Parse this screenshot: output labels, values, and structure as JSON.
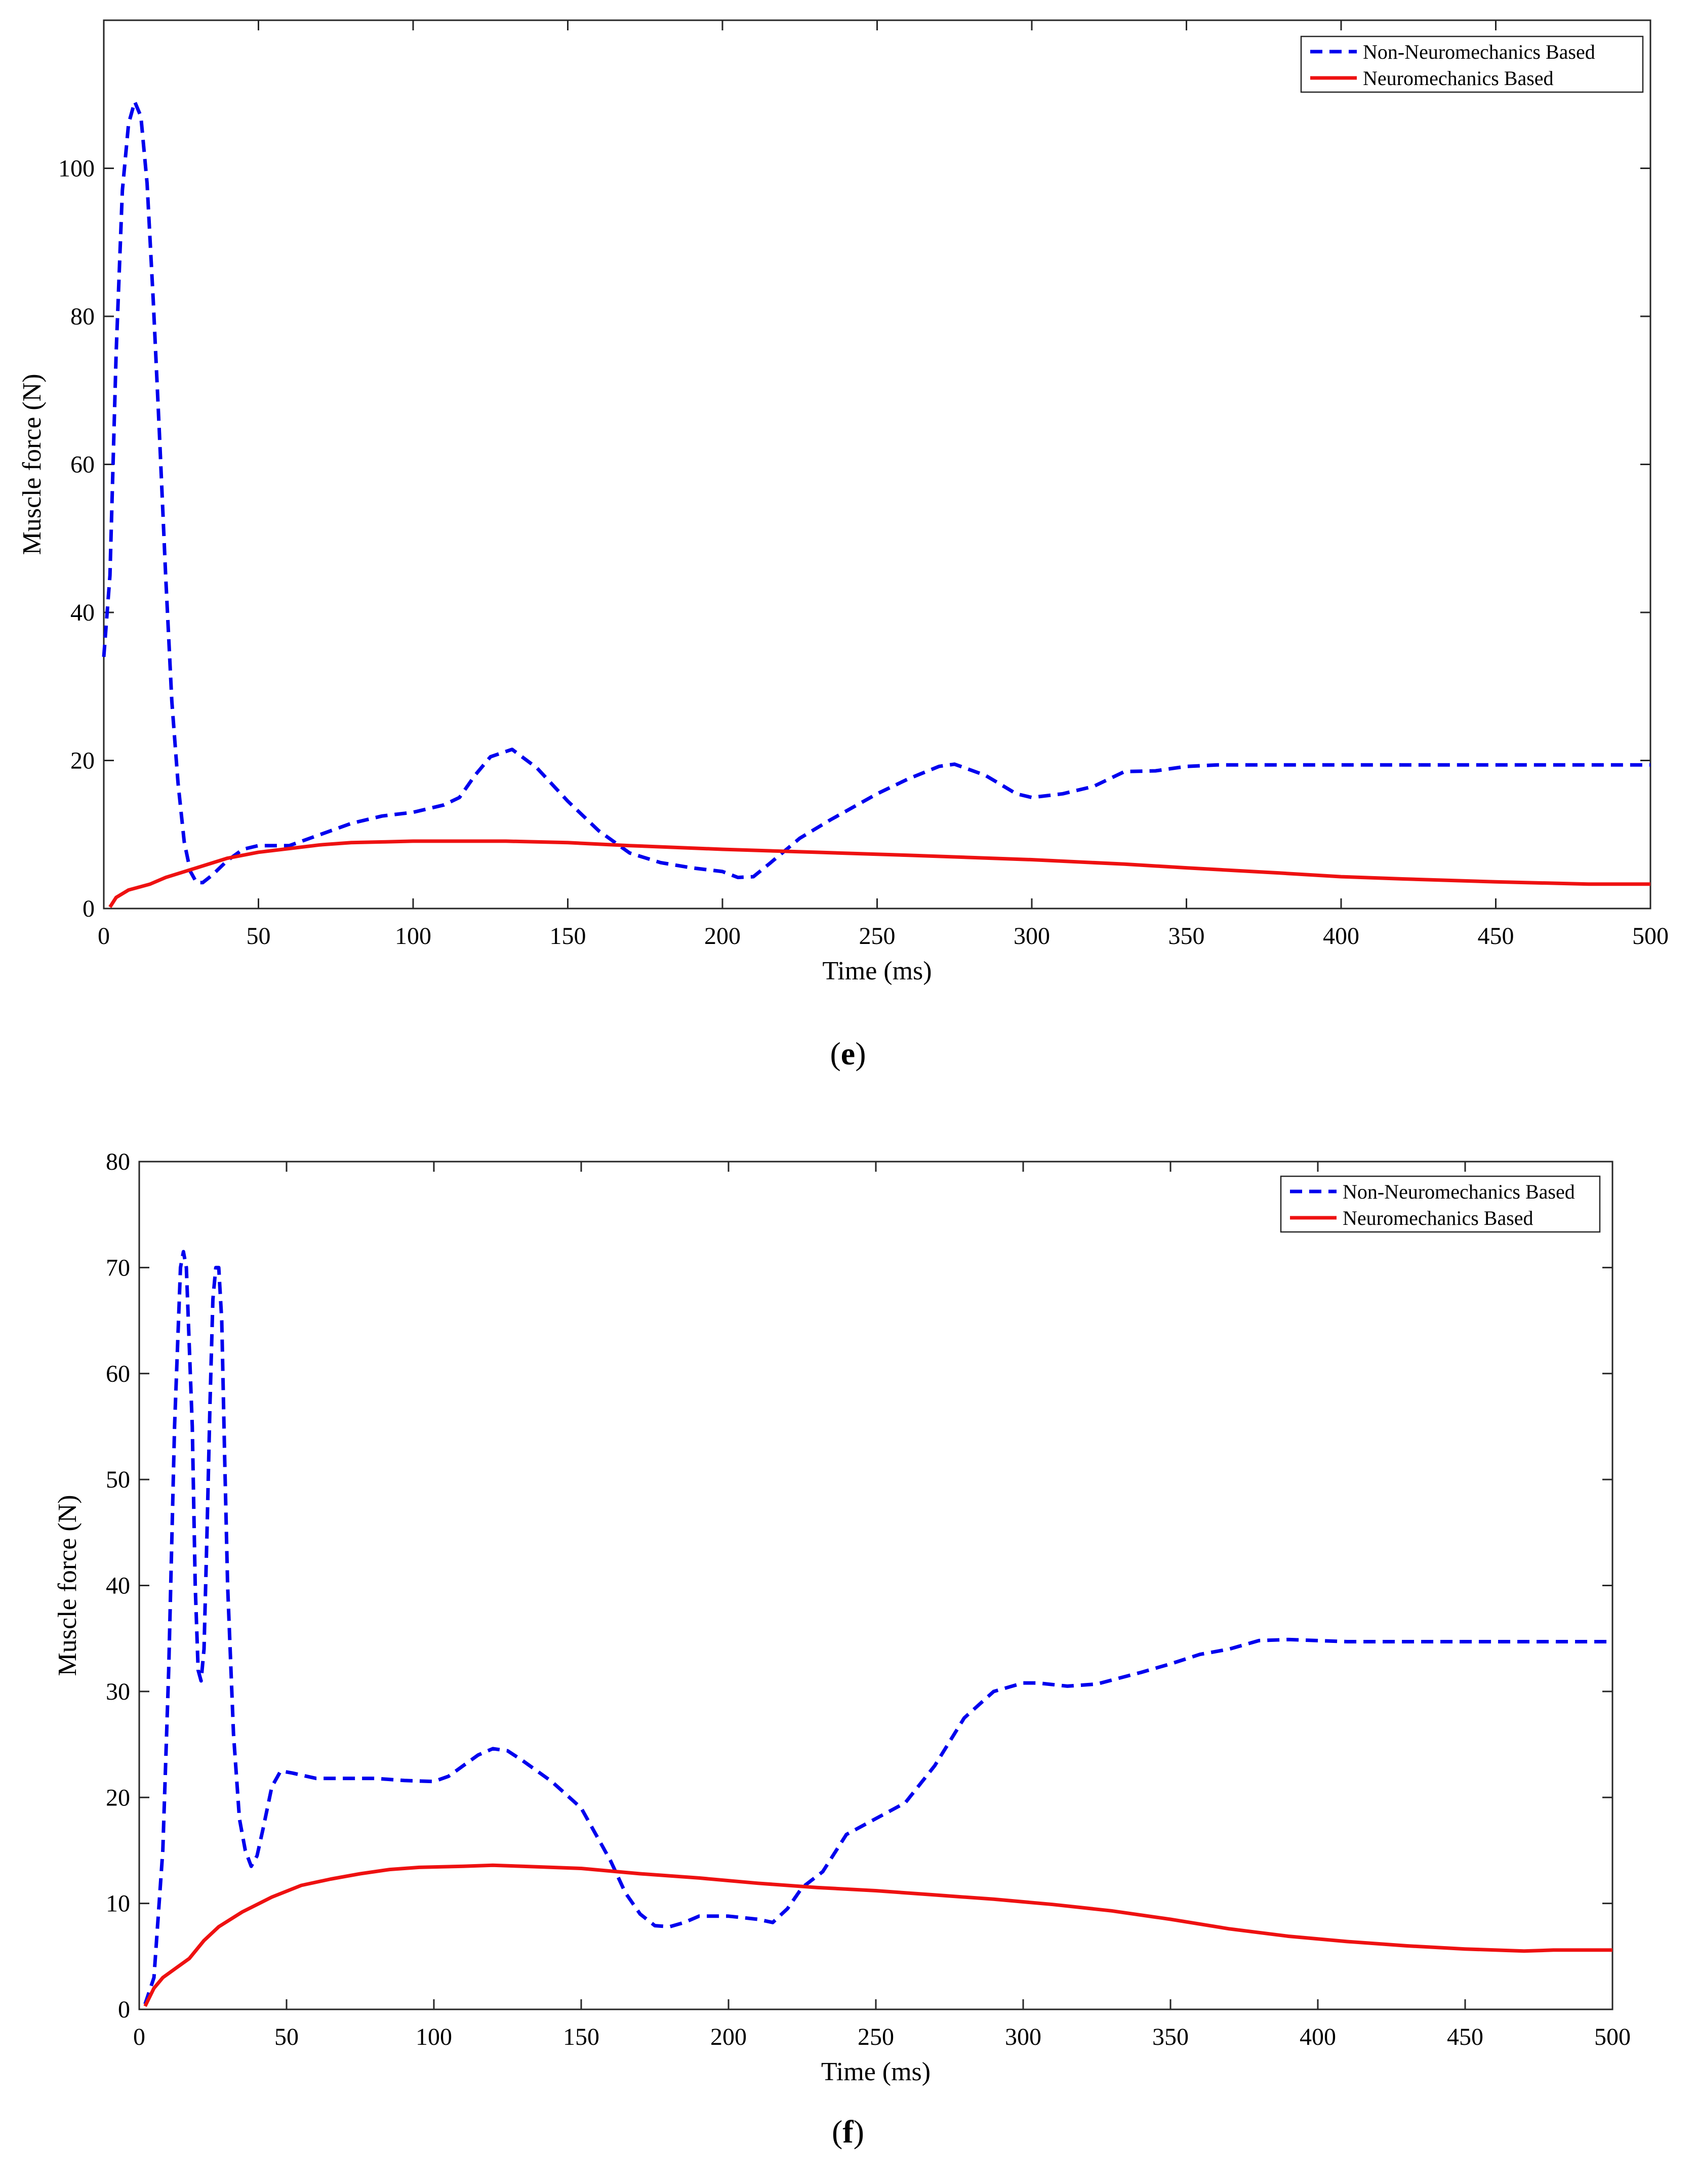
{
  "chart_data": [
    {
      "type": "line",
      "panel": "e",
      "xlabel": "Time (ms)",
      "ylabel": "Muscle force (N)",
      "xlim": [
        0,
        500
      ],
      "ylim": [
        0,
        120
      ],
      "xticks": [
        0,
        50,
        100,
        150,
        200,
        250,
        300,
        350,
        400,
        450,
        500
      ],
      "yticks": [
        0,
        20,
        40,
        60,
        80,
        100
      ],
      "legend_position": "top-right",
      "grid": false,
      "series": [
        {
          "name": "Non-Neuromechanics Based",
          "color": "#0000ee",
          "style": "dashed",
          "points": [
            [
              0,
              34
            ],
            [
              2,
              45
            ],
            [
              4,
              75
            ],
            [
              6,
              97
            ],
            [
              8,
              106
            ],
            [
              10,
              109
            ],
            [
              12,
              107
            ],
            [
              14,
              98
            ],
            [
              16,
              82
            ],
            [
              18,
              64
            ],
            [
              20,
              45
            ],
            [
              22,
              28
            ],
            [
              24,
              17
            ],
            [
              26,
              9
            ],
            [
              28,
              5
            ],
            [
              30,
              3.5
            ],
            [
              32,
              3.5
            ],
            [
              35,
              4.5
            ],
            [
              40,
              6.5
            ],
            [
              45,
              8
            ],
            [
              50,
              8.5
            ],
            [
              60,
              8.5
            ],
            [
              70,
              10
            ],
            [
              80,
              11.5
            ],
            [
              90,
              12.5
            ],
            [
              100,
              13
            ],
            [
              110,
              14
            ],
            [
              115,
              15
            ],
            [
              120,
              18
            ],
            [
              125,
              20.5
            ],
            [
              132,
              21.5
            ],
            [
              140,
              19
            ],
            [
              150,
              14.5
            ],
            [
              160,
              10.5
            ],
            [
              170,
              7.5
            ],
            [
              180,
              6.2
            ],
            [
              190,
              5.5
            ],
            [
              200,
              5
            ],
            [
              205,
              4.2
            ],
            [
              210,
              4.3
            ],
            [
              215,
              6
            ],
            [
              225,
              9.5
            ],
            [
              235,
              12
            ],
            [
              250,
              15.5
            ],
            [
              260,
              17.5
            ],
            [
              270,
              19.2
            ],
            [
              275,
              19.5
            ],
            [
              285,
              18
            ],
            [
              295,
              15.5
            ],
            [
              300,
              15
            ],
            [
              310,
              15.5
            ],
            [
              320,
              16.5
            ],
            [
              330,
              18.5
            ],
            [
              340,
              18.6
            ],
            [
              350,
              19.2
            ],
            [
              360,
              19.4
            ],
            [
              500,
              19.4
            ]
          ]
        },
        {
          "name": "Neuromechanics Based",
          "color": "#ee1111",
          "style": "solid",
          "points": [
            [
              2,
              0.2
            ],
            [
              4,
              1.5
            ],
            [
              8,
              2.5
            ],
            [
              15,
              3.3
            ],
            [
              20,
              4.2
            ],
            [
              30,
              5.5
            ],
            [
              40,
              6.8
            ],
            [
              50,
              7.6
            ],
            [
              60,
              8.1
            ],
            [
              70,
              8.6
            ],
            [
              80,
              8.9
            ],
            [
              90,
              9
            ],
            [
              100,
              9.1
            ],
            [
              130,
              9.1
            ],
            [
              150,
              8.9
            ],
            [
              170,
              8.5
            ],
            [
              200,
              8
            ],
            [
              230,
              7.6
            ],
            [
              260,
              7.2
            ],
            [
              300,
              6.6
            ],
            [
              330,
              6
            ],
            [
              350,
              5.5
            ],
            [
              380,
              4.8
            ],
            [
              400,
              4.3
            ],
            [
              420,
              4
            ],
            [
              450,
              3.6
            ],
            [
              480,
              3.3
            ],
            [
              500,
              3.3
            ]
          ]
        }
      ]
    },
    {
      "type": "line",
      "panel": "f",
      "xlabel": "Time (ms)",
      "ylabel": "Muscle force (N)",
      "xlim": [
        0,
        500
      ],
      "ylim": [
        0,
        80
      ],
      "xticks": [
        0,
        50,
        100,
        150,
        200,
        250,
        300,
        350,
        400,
        450,
        500
      ],
      "yticks": [
        0,
        10,
        20,
        30,
        40,
        50,
        60,
        70,
        80
      ],
      "legend_position": "top-right",
      "grid": false,
      "series": [
        {
          "name": "Non-Neuromechanics Based",
          "color": "#0000ee",
          "style": "dashed",
          "points": [
            [
              2,
              0.5
            ],
            [
              5,
              3
            ],
            [
              8,
              15
            ],
            [
              10,
              32
            ],
            [
              12,
              55
            ],
            [
              14,
              70
            ],
            [
              15,
              71.5
            ],
            [
              16,
              70
            ],
            [
              18,
              55
            ],
            [
              19,
              40
            ],
            [
              20,
              32
            ],
            [
              21,
              31
            ],
            [
              22,
              34
            ],
            [
              23,
              45
            ],
            [
              24,
              57
            ],
            [
              25,
              67
            ],
            [
              26,
              70
            ],
            [
              27,
              70
            ],
            [
              28,
              65
            ],
            [
              29,
              52
            ],
            [
              30,
              40
            ],
            [
              32,
              26
            ],
            [
              34,
              18
            ],
            [
              36,
              15
            ],
            [
              38,
              13.5
            ],
            [
              40,
              14.5
            ],
            [
              42,
              17
            ],
            [
              45,
              21
            ],
            [
              48,
              22.5
            ],
            [
              52,
              22.3
            ],
            [
              60,
              21.8
            ],
            [
              80,
              21.8
            ],
            [
              90,
              21.6
            ],
            [
              100,
              21.5
            ],
            [
              105,
              22
            ],
            [
              110,
              23
            ],
            [
              115,
              24
            ],
            [
              120,
              24.6
            ],
            [
              125,
              24.4
            ],
            [
              130,
              23.5
            ],
            [
              140,
              21.5
            ],
            [
              150,
              19
            ],
            [
              160,
              14
            ],
            [
              165,
              11
            ],
            [
              170,
              9
            ],
            [
              175,
              7.9
            ],
            [
              180,
              7.8
            ],
            [
              185,
              8.2
            ],
            [
              190,
              8.8
            ],
            [
              200,
              8.8
            ],
            [
              210,
              8.5
            ],
            [
              215,
              8.2
            ],
            [
              220,
              9.5
            ],
            [
              225,
              11.5
            ],
            [
              232,
              13
            ],
            [
              240,
              16.5
            ],
            [
              250,
              18
            ],
            [
              260,
              19.5
            ],
            [
              270,
              23
            ],
            [
              280,
              27.5
            ],
            [
              290,
              30
            ],
            [
              300,
              30.8
            ],
            [
              305,
              30.8
            ],
            [
              315,
              30.5
            ],
            [
              325,
              30.7
            ],
            [
              340,
              31.8
            ],
            [
              350,
              32.6
            ],
            [
              360,
              33.5
            ],
            [
              370,
              34
            ],
            [
              380,
              34.8
            ],
            [
              390,
              34.9
            ],
            [
              400,
              34.8
            ],
            [
              410,
              34.7
            ],
            [
              500,
              34.7
            ]
          ]
        },
        {
          "name": "Neuromechanics Based",
          "color": "#ee1111",
          "style": "solid",
          "points": [
            [
              2,
              0.3
            ],
            [
              5,
              2
            ],
            [
              8,
              3
            ],
            [
              12,
              3.8
            ],
            [
              17,
              4.8
            ],
            [
              22,
              6.5
            ],
            [
              27,
              7.8
            ],
            [
              35,
              9.2
            ],
            [
              45,
              10.6
            ],
            [
              55,
              11.7
            ],
            [
              65,
              12.3
            ],
            [
              75,
              12.8
            ],
            [
              85,
              13.2
            ],
            [
              95,
              13.4
            ],
            [
              110,
              13.5
            ],
            [
              120,
              13.6
            ],
            [
              130,
              13.5
            ],
            [
              150,
              13.3
            ],
            [
              170,
              12.8
            ],
            [
              190,
              12.4
            ],
            [
              210,
              11.9
            ],
            [
              230,
              11.5
            ],
            [
              250,
              11.2
            ],
            [
              270,
              10.8
            ],
            [
              290,
              10.4
            ],
            [
              310,
              9.9
            ],
            [
              330,
              9.3
            ],
            [
              350,
              8.5
            ],
            [
              370,
              7.6
            ],
            [
              390,
              6.9
            ],
            [
              410,
              6.4
            ],
            [
              430,
              6
            ],
            [
              450,
              5.7
            ],
            [
              470,
              5.5
            ],
            [
              480,
              5.6
            ],
            [
              500,
              5.6
            ]
          ]
        }
      ]
    }
  ],
  "captions": {
    "e": "(e)",
    "f": "(f)"
  }
}
